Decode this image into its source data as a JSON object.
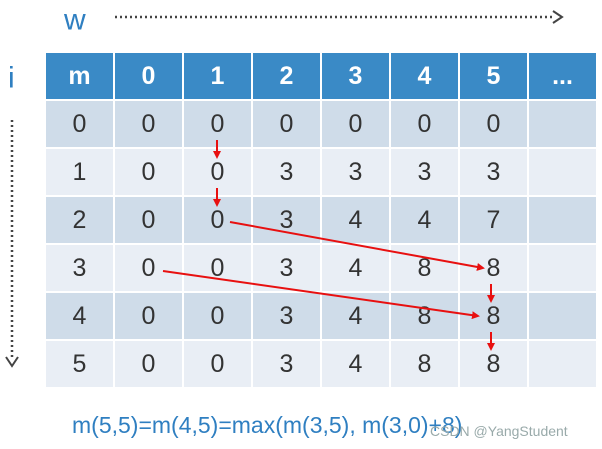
{
  "axis_labels": {
    "w": "w",
    "i": "i"
  },
  "table": {
    "header": [
      "m",
      "0",
      "1",
      "2",
      "3",
      "4",
      "5",
      "..."
    ],
    "rows": [
      [
        0,
        0,
        0,
        0,
        0,
        0,
        0
      ],
      [
        1,
        0,
        0,
        3,
        3,
        3,
        3
      ],
      [
        2,
        0,
        0,
        3,
        4,
        4,
        7
      ],
      [
        3,
        0,
        0,
        3,
        4,
        8,
        8
      ],
      [
        4,
        0,
        0,
        3,
        4,
        8,
        8
      ],
      [
        5,
        0,
        0,
        3,
        4,
        8,
        8
      ]
    ]
  },
  "formula": "m(5,5)=m(4,5)=max(m(3,5), m(3,0)+8)",
  "watermark": "CSDN @YangStudent"
}
